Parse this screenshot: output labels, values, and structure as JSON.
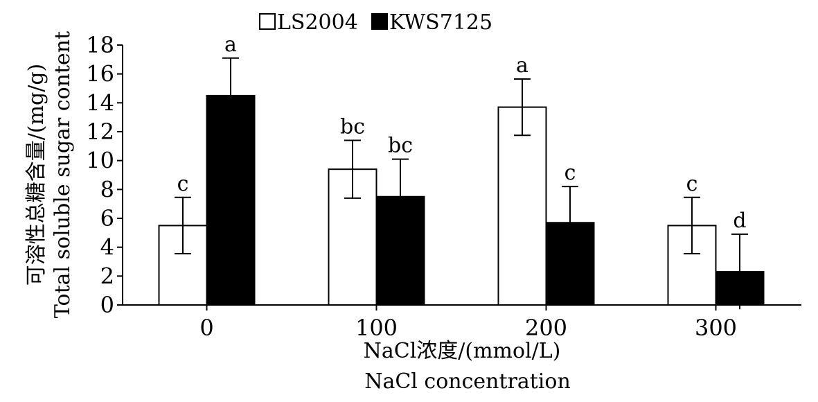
{
  "chart_data": {
    "type": "bar",
    "title": "",
    "categories": [
      "0",
      "100",
      "200",
      "300"
    ],
    "series": [
      {
        "name": "LS2004",
        "color": "#ffffff",
        "values": [
          5.5,
          9.4,
          13.7,
          5.5
        ],
        "errors": [
          1.95,
          2.0,
          1.95,
          1.95
        ],
        "letters": [
          "c",
          "bc",
          "a",
          "c"
        ]
      },
      {
        "name": "KWS7125",
        "color": "#000000",
        "values": [
          14.5,
          7.5,
          5.7,
          2.3
        ],
        "errors": [
          2.6,
          2.6,
          2.5,
          2.6
        ],
        "letters": [
          "a",
          "bc",
          "c",
          "d"
        ]
      }
    ],
    "xlabel": "NaCl浓度/(mmol/L)",
    "xlabel_en": "NaCl concentration",
    "ylabel": "可溶性总糖含量/(mg/g)",
    "ylabel_en": "Total soluble sugar content",
    "ylim": [
      0,
      18
    ],
    "yticks": [
      0,
      2,
      4,
      6,
      8,
      10,
      12,
      14,
      16,
      18
    ],
    "legend_position": "top-center",
    "grid": false
  }
}
